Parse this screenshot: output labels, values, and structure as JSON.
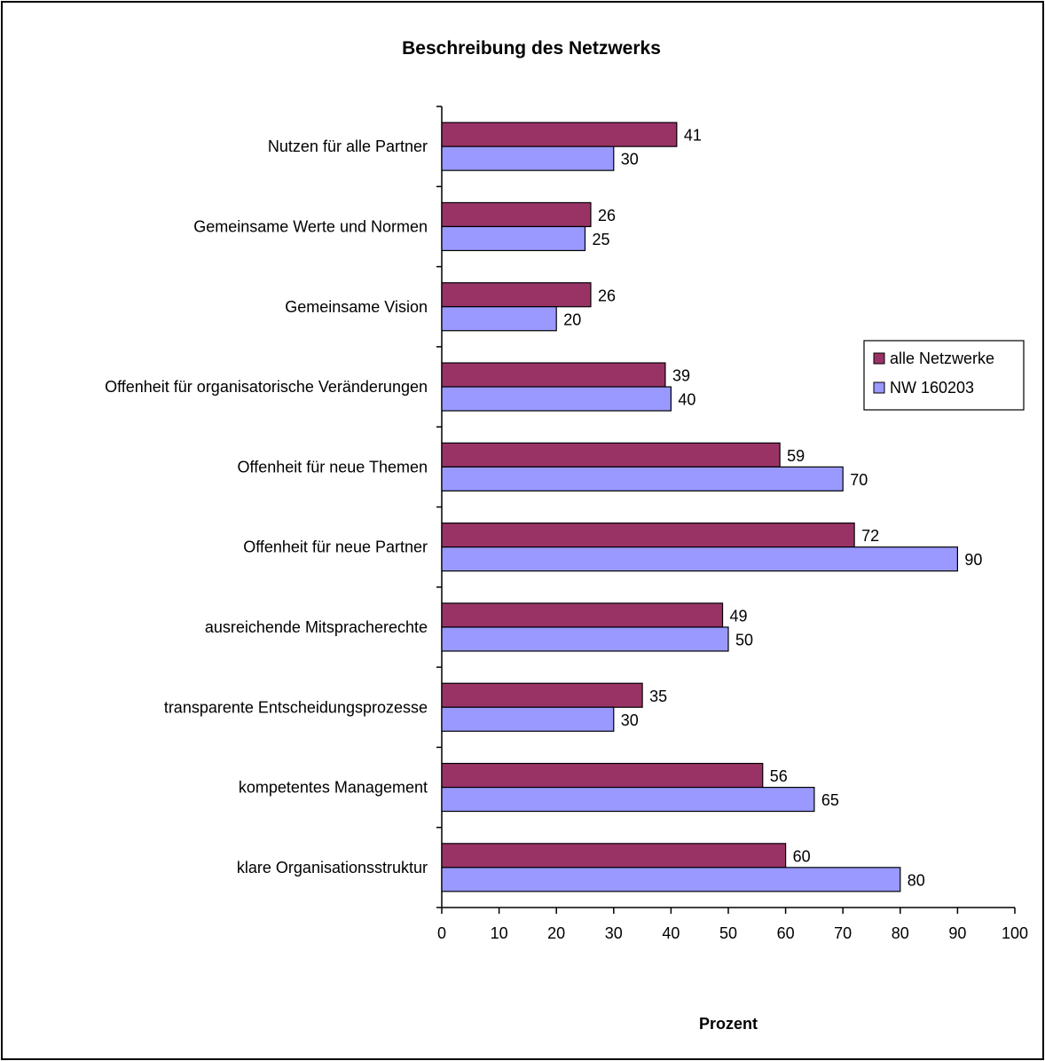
{
  "chart_data": {
    "type": "bar",
    "orientation": "horizontal",
    "title": "Beschreibung des Netzwerks",
    "xlabel": "Prozent",
    "ylabel": "",
    "xlim": [
      0,
      100
    ],
    "xticks": [
      0,
      10,
      20,
      30,
      40,
      50,
      60,
      70,
      80,
      90,
      100
    ],
    "grid": false,
    "legend_position": "right",
    "categories": [
      "Nutzen für alle Partner",
      "Gemeinsame Werte und Normen",
      "Gemeinsame Vision",
      "Offenheit für organisatorische Veränderungen",
      "Offenheit für neue Themen",
      "Offenheit für neue Partner",
      "ausreichende Mitspracherechte",
      "transparente Entscheidungsprozesse",
      "kompetentes Management",
      "klare Organisationsstruktur"
    ],
    "series": [
      {
        "name": "alle Netzwerke",
        "color": "#993366",
        "values": [
          41,
          26,
          26,
          39,
          59,
          72,
          49,
          35,
          56,
          60
        ]
      },
      {
        "name": "NW 160203",
        "color": "#9999ff",
        "values": [
          30,
          25,
          20,
          40,
          70,
          90,
          50,
          30,
          65,
          80
        ]
      }
    ]
  }
}
